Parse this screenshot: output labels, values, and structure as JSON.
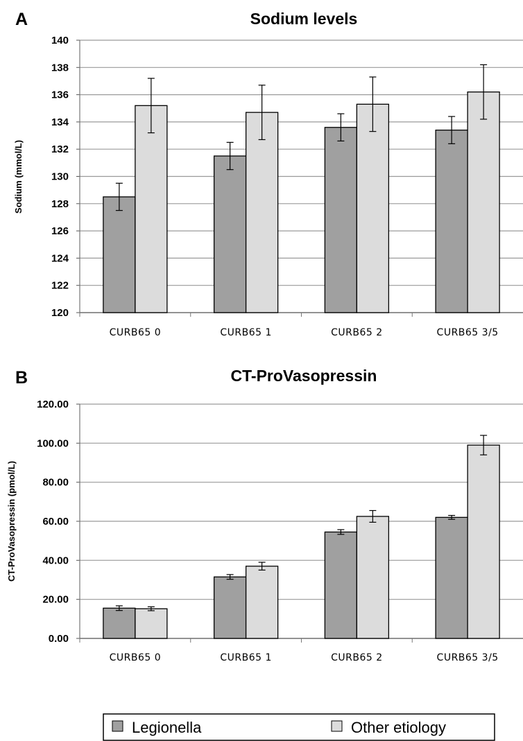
{
  "legend": {
    "items": [
      {
        "label": "Legionella",
        "color": "#a0a0a0"
      },
      {
        "label": "Other etiology",
        "color": "#dcdcdc"
      }
    ]
  },
  "chart_data": [
    {
      "panel": "A",
      "type": "bar",
      "title": "Sodium levels",
      "xlabel": "",
      "ylabel": "Sodium (mmol/L)",
      "ylim": [
        120,
        140
      ],
      "ytick_step": 2,
      "ytick_decimals": 0,
      "grid": true,
      "categories": [
        "CURB65 0",
        "CURB65 1",
        "CURB65 2",
        "CURB65 3/5"
      ],
      "series": [
        {
          "name": "Legionella",
          "color": "#a0a0a0",
          "values": [
            128.5,
            131.5,
            133.6,
            133.4
          ],
          "errors": [
            1.0,
            1.0,
            1.0,
            1.0
          ]
        },
        {
          "name": "Other etiology",
          "color": "#dcdcdc",
          "values": [
            135.2,
            134.7,
            135.3,
            136.2
          ],
          "errors": [
            2.0,
            2.0,
            2.0,
            2.0
          ]
        }
      ]
    },
    {
      "panel": "B",
      "type": "bar",
      "title": "CT-ProVasopressin",
      "xlabel": "",
      "ylabel": "CT-ProVasopressin (pmol/L)",
      "ylim": [
        0,
        120
      ],
      "ytick_step": 20,
      "ytick_decimals": 2,
      "grid": true,
      "categories": [
        "CURB65 0",
        "CURB65 1",
        "CURB65 2",
        "CURB65 3/5"
      ],
      "series": [
        {
          "name": "Legionella",
          "color": "#a0a0a0",
          "values": [
            15.5,
            31.5,
            54.5,
            62.0
          ],
          "errors": [
            1.2,
            1.2,
            1.2,
            1.0
          ]
        },
        {
          "name": "Other etiology",
          "color": "#dcdcdc",
          "values": [
            15.2,
            37.0,
            62.5,
            99.0
          ],
          "errors": [
            1.0,
            2.0,
            3.0,
            5.0
          ]
        }
      ]
    }
  ]
}
